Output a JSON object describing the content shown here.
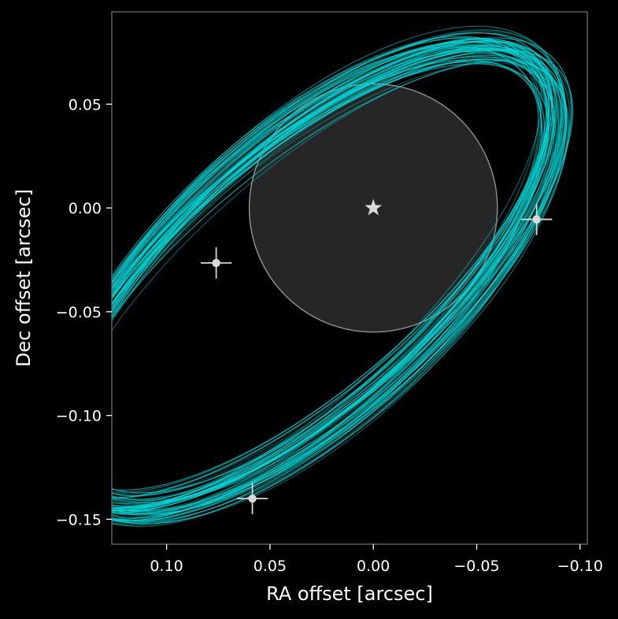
{
  "chart_data": {
    "type": "scatter",
    "title": "",
    "xlabel": "RA offset [arcsec]",
    "ylabel": "Dec offset [arcsec]",
    "xlim": [
      0.1265,
      -0.1035
    ],
    "ylim": [
      -0.162,
      0.0945
    ],
    "x_inverted": true,
    "x_ticks": [
      0.1,
      0.05,
      0.0,
      -0.05,
      -0.1
    ],
    "x_tick_labels": [
      "0.10",
      "0.05",
      "0.00",
      "−0.05",
      "−0.10"
    ],
    "y_ticks": [
      0.05,
      0.0,
      -0.05,
      -0.1,
      -0.15
    ],
    "y_tick_labels": [
      "0.05",
      "0.00",
      "−0.05",
      "−0.10",
      "−0.15"
    ],
    "grid": false,
    "background_color": "#000000",
    "foreground_color": "#ffffff",
    "orbit_color": "#00d8d8",
    "marker_color": "#d9d9d9",
    "star": {
      "ra": 0.0,
      "dec": 0.0,
      "marker": "star-icon"
    },
    "coronagraph_mask": {
      "center_ra": 0.0,
      "center_dec": 0.0,
      "radius": 0.06,
      "fill": "#262626",
      "edge": "#8a8a8a"
    },
    "orbits": {
      "description_count": 60,
      "center_ra": 0.0325,
      "center_dec": -0.034,
      "semi_major": 0.152,
      "semi_minor": 0.063,
      "position_angle_deg": 42
    },
    "detections": [
      {
        "ra": 0.076,
        "dec": -0.0265,
        "ra_err": 0.0075,
        "dec_err": 0.0075
      },
      {
        "ra": -0.079,
        "dec": -0.0055,
        "ra_err": 0.0075,
        "dec_err": 0.0075
      },
      {
        "ra": 0.0585,
        "dec": -0.14,
        "ra_err": 0.0075,
        "dec_err": 0.0075
      }
    ]
  }
}
